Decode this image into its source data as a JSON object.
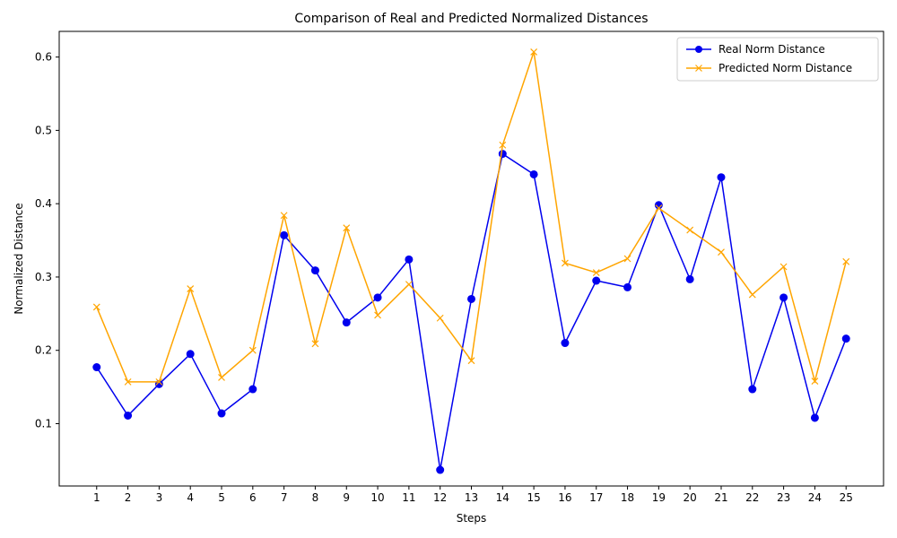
{
  "chart_data": {
    "type": "line",
    "title": "Comparison of Real and Predicted Normalized Distances",
    "xlabel": "Steps",
    "ylabel": "Normalized Distance",
    "x": [
      1,
      2,
      3,
      4,
      5,
      6,
      7,
      8,
      9,
      10,
      11,
      12,
      13,
      14,
      15,
      16,
      17,
      18,
      19,
      20,
      21,
      22,
      23,
      24,
      25
    ],
    "ylim": [
      0.015,
      0.635
    ],
    "yticks": [
      "0.1",
      "0.2",
      "0.3",
      "0.4",
      "0.5",
      "0.6"
    ],
    "grid": false,
    "legend_position": "top-right",
    "series": [
      {
        "name": "Real Norm Distance",
        "color": "#0000ee",
        "marker": "circle",
        "values": [
          0.177,
          0.111,
          0.154,
          0.195,
          0.114,
          0.147,
          0.357,
          0.309,
          0.238,
          0.272,
          0.324,
          0.037,
          0.27,
          0.468,
          0.44,
          0.21,
          0.295,
          0.286,
          0.398,
          0.297,
          0.436,
          0.147,
          0.272,
          0.108,
          0.216
        ]
      },
      {
        "name": "Predicted Norm Distance",
        "color": "#ffa500",
        "marker": "x",
        "values": [
          0.259,
          0.157,
          0.157,
          0.284,
          0.163,
          0.2,
          0.384,
          0.209,
          0.367,
          0.248,
          0.29,
          0.244,
          0.186,
          0.48,
          0.607,
          0.319,
          0.306,
          0.325,
          0.394,
          0.364,
          0.334,
          0.276,
          0.314,
          0.158,
          0.321
        ]
      }
    ]
  }
}
